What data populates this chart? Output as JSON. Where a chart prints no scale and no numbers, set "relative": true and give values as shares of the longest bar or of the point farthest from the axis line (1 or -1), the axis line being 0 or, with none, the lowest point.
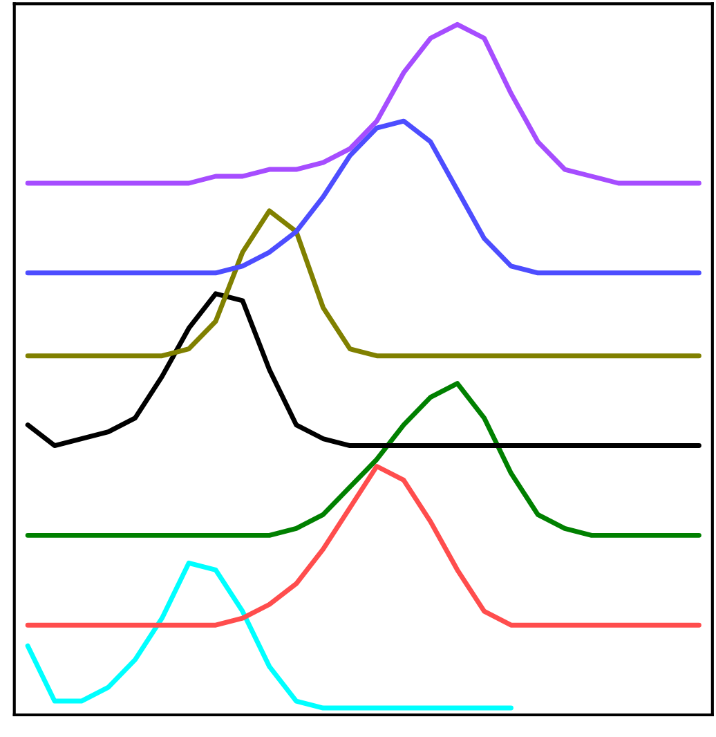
{
  "chart_data": {
    "type": "line",
    "relative": true,
    "grid": false,
    "legend": false,
    "categories": [
      null,
      null,
      null,
      null,
      null,
      null,
      null,
      null,
      null,
      null,
      null,
      null,
      null,
      null,
      null,
      null,
      null,
      null,
      null,
      null,
      null,
      null,
      null,
      null,
      null,
      null
    ],
    "series": [
      {
        "color": "#00ffff",
        "values": [
          0.1,
          0.02,
          0.02,
          0.04,
          0.08,
          0.14,
          0.22,
          0.21,
          0.15,
          0.07,
          0.02,
          0.01,
          0.01,
          0.01,
          0.01,
          0.01,
          0.01,
          0.01,
          0.01,
          null,
          null,
          null,
          null,
          null,
          null,
          null
        ]
      },
      {
        "color": "#ff4d4d",
        "values": [
          0.13,
          0.13,
          0.13,
          0.13,
          0.13,
          0.13,
          0.13,
          0.13,
          0.14,
          0.16,
          0.19,
          0.24,
          0.3,
          0.36,
          0.34,
          0.28,
          0.21,
          0.15,
          0.13,
          0.13,
          0.13,
          0.13,
          0.13,
          0.13,
          0.13,
          0.13
        ]
      },
      {
        "color": "#008000",
        "values": [
          0.26,
          0.26,
          0.26,
          0.26,
          0.26,
          0.26,
          0.26,
          0.26,
          0.26,
          0.26,
          0.27,
          0.29,
          0.33,
          0.37,
          0.42,
          0.46,
          0.48,
          0.43,
          0.35,
          0.29,
          0.27,
          0.26,
          0.26,
          0.26,
          0.26,
          0.26
        ]
      },
      {
        "color": "#000000",
        "values": [
          0.42,
          0.39,
          0.4,
          0.41,
          0.43,
          0.49,
          0.56,
          0.61,
          0.6,
          0.5,
          0.42,
          0.4,
          0.39,
          0.39,
          0.39,
          0.39,
          0.39,
          0.39,
          0.39,
          0.39,
          0.39,
          0.39,
          0.39,
          0.39,
          0.39,
          0.39
        ]
      },
      {
        "color": "#808000",
        "values": [
          0.52,
          0.52,
          0.52,
          0.52,
          0.52,
          0.52,
          0.53,
          0.57,
          0.67,
          0.73,
          0.7,
          0.59,
          0.53,
          0.52,
          0.52,
          0.52,
          0.52,
          0.52,
          0.52,
          0.52,
          0.52,
          0.52,
          0.52,
          0.52,
          0.52,
          0.52
        ]
      },
      {
        "color": "#4d4dff",
        "values": [
          0.64,
          0.64,
          0.64,
          0.64,
          0.64,
          0.64,
          0.64,
          0.64,
          0.65,
          0.67,
          0.7,
          0.75,
          0.81,
          0.85,
          0.86,
          0.83,
          0.76,
          0.69,
          0.65,
          0.64,
          0.64,
          0.64,
          0.64,
          0.64,
          0.64,
          0.64
        ]
      },
      {
        "color": "#a64dff",
        "values": [
          0.77,
          0.77,
          0.77,
          0.77,
          0.77,
          0.77,
          0.77,
          0.78,
          0.78,
          0.79,
          0.79,
          0.8,
          0.82,
          0.86,
          0.93,
          0.98,
          1.0,
          0.98,
          0.9,
          0.83,
          0.79,
          0.78,
          0.77,
          0.77,
          0.77,
          0.77
        ]
      }
    ]
  }
}
